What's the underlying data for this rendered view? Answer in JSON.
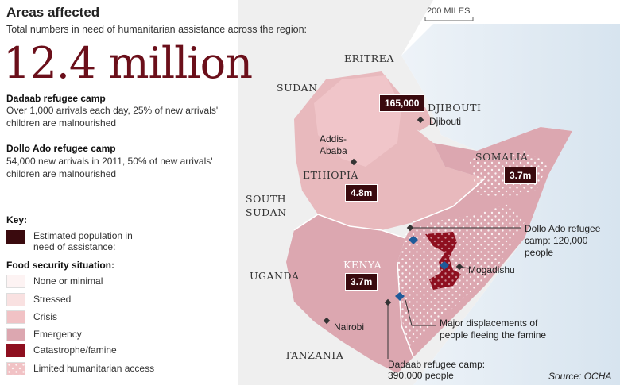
{
  "header": {
    "title": "Areas affected",
    "subtitle": "Total numbers in need of humanitarian assistance across the region:",
    "total": "12.4 million"
  },
  "camps_text": [
    {
      "heading": "Dadaab refugee camp",
      "text": "Over 1,000 arrivals each day, 25% of new arrivals' children are malnourished"
    },
    {
      "heading": "Dollo Ado refugee camp",
      "text": "54,000 new arrivals in 2011, 50% of new arrivals' children are malnourished"
    }
  ],
  "key": {
    "title": "Key:",
    "estimated_label": "Estimated population in need of assistance:",
    "food_title": "Food security situation:",
    "items": [
      {
        "label": "None or minimal",
        "color": "#fdf3f3"
      },
      {
        "label": "Stressed",
        "color": "#f9e1e1"
      },
      {
        "label": "Crisis",
        "color": "#f1c2c5"
      },
      {
        "label": "Emergency",
        "color": "#dca7b0"
      },
      {
        "label": "Catastrophe/famine",
        "color": "#8e0f1f"
      },
      {
        "label": "Limited humanitarian access",
        "color": "#f1c2c5"
      }
    ],
    "estimated_color": "#3a0a0e"
  },
  "scale": "200 MILES",
  "countries": [
    "ERITREA",
    "SUDAN",
    "DJIBOUTI",
    "ETHIOPIA",
    "SOMALIA",
    "SOUTH",
    "SUDAN",
    "UGANDA",
    "KENYA",
    "TANZANIA"
  ],
  "places": [
    "Djibouti",
    "Addis-",
    "Ababa",
    "Nairobi",
    "Mogadishu"
  ],
  "badges": [
    "165,000",
    "4.8m",
    "3.7m",
    "3.7m"
  ],
  "callouts": {
    "dollo": [
      "Dollo Ado refugee",
      "camp: 120,000",
      "people"
    ],
    "displacement": [
      "Major displacements of",
      "people fleeing the famine"
    ],
    "dadaab": [
      "Dadaab refugee camp:",
      "390,000 people"
    ]
  },
  "source": "Source: OCHA"
}
